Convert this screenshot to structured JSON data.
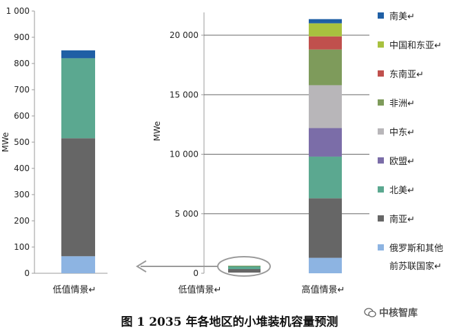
{
  "chart_data": [
    {
      "type": "bar",
      "stacked": true,
      "ylabel": "MWe",
      "ylim": [
        0,
        1000
      ],
      "y_ticks": [
        0,
        100,
        200,
        300,
        400,
        500,
        600,
        700,
        800,
        900,
        1000
      ],
      "y_tick_labels": [
        "0",
        "100",
        "200",
        "300",
        "400",
        "500",
        "600",
        "700",
        "800",
        "900",
        "1 000"
      ],
      "categories": [
        "低值情景"
      ],
      "series": [
        {
          "name": "俄罗斯和其他前苏联国家",
          "color": "#8db4e2",
          "values": [
            65
          ]
        },
        {
          "name": "南亚",
          "color": "#666666",
          "values": [
            450
          ]
        },
        {
          "name": "北美",
          "color": "#5ba890",
          "values": [
            305
          ]
        },
        {
          "name": "欧盟",
          "color": "#7b6da8",
          "values": [
            0
          ]
        },
        {
          "name": "中东",
          "color": "#b8b6b9",
          "values": [
            0
          ]
        },
        {
          "name": "非洲",
          "color": "#7e9b5b",
          "values": [
            0
          ]
        },
        {
          "name": "东南亚",
          "color": "#c0504d",
          "values": [
            0
          ]
        },
        {
          "name": "中国和东亚",
          "color": "#a8c13f",
          "values": [
            0
          ]
        },
        {
          "name": "南美",
          "color": "#1f5fa5",
          "values": [
            30
          ]
        }
      ]
    },
    {
      "type": "bar",
      "stacked": true,
      "ylabel": "MWe",
      "ylim": [
        0,
        22500
      ],
      "y_ticks": [
        0,
        5000,
        10000,
        15000,
        20000
      ],
      "y_tick_labels": [
        "0",
        "5 000",
        "10 000",
        "15 000",
        "20 000"
      ],
      "grid": true,
      "categories": [
        "低值情景",
        "高值情景"
      ],
      "series": [
        {
          "name": "俄罗斯和其他前苏联国家",
          "color": "#8db4e2",
          "values": [
            65,
            1300
          ]
        },
        {
          "name": "南亚",
          "color": "#666666",
          "values": [
            450,
            5000
          ]
        },
        {
          "name": "北美",
          "color": "#5ba890",
          "values": [
            305,
            3500
          ]
        },
        {
          "name": "欧盟",
          "color": "#7b6da8",
          "values": [
            0,
            2400
          ]
        },
        {
          "name": "中东",
          "color": "#b8b6b9",
          "values": [
            0,
            3600
          ]
        },
        {
          "name": "非洲",
          "color": "#7e9b5b",
          "values": [
            0,
            3000
          ]
        },
        {
          "name": "东南亚",
          "color": "#c0504d",
          "values": [
            0,
            1100
          ]
        },
        {
          "name": "中国和东亚",
          "color": "#a8c13f",
          "values": [
            0,
            1100
          ]
        },
        {
          "name": "南美",
          "color": "#1f5fa5",
          "values": [
            30,
            350
          ]
        }
      ],
      "legend_position": "right"
    }
  ],
  "legend": {
    "items": [
      {
        "label": "南美",
        "color": "#1f5fa5"
      },
      {
        "label": "中国和东亚",
        "color": "#a8c13f"
      },
      {
        "label": "东南亚",
        "color": "#c0504d"
      },
      {
        "label": "非洲",
        "color": "#7e9b5b"
      },
      {
        "label": "中东",
        "color": "#b8b6b9"
      },
      {
        "label": "欧盟",
        "color": "#7b6da8"
      },
      {
        "label": "北美",
        "color": "#5ba890"
      },
      {
        "label": "南亚",
        "color": "#666666"
      },
      {
        "label": "俄罗斯和其他",
        "color": "#8db4e2"
      }
    ],
    "extra_line": "前苏联国家"
  },
  "caption": "图 1 2035 年各地区的小堆装机容量预测",
  "watermark": "中核智库"
}
